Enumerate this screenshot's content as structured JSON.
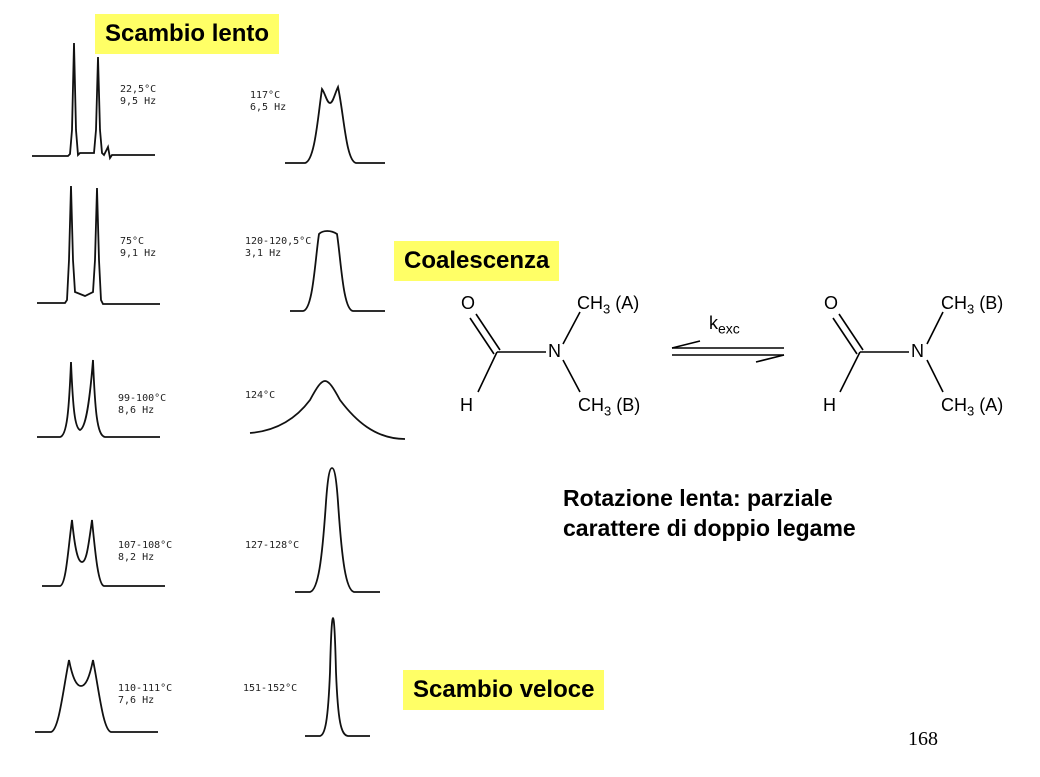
{
  "labels": {
    "slow": "Scambio lento",
    "coalescence": "Coalescenza",
    "fast": "Scambio veloce"
  },
  "spectra": [
    {
      "temp": "22,5°C",
      "hz": "9,5 Hz"
    },
    {
      "temp": "75°C",
      "hz": "9,1 Hz"
    },
    {
      "temp": "99-100°C",
      "hz": "8,6 Hz"
    },
    {
      "temp": "107-108°C",
      "hz": "8,2 Hz"
    },
    {
      "temp": "110-111°C",
      "hz": "7,6 Hz"
    },
    {
      "temp": "117°C",
      "hz": "6,5 Hz"
    },
    {
      "temp": "120-120,5°C",
      "hz": "3,1 Hz"
    },
    {
      "temp": "124°C",
      "hz": ""
    },
    {
      "temp": "127-128°C",
      "hz": ""
    },
    {
      "temp": "151-152°C",
      "hz": ""
    }
  ],
  "molecule": {
    "left": {
      "O": "O",
      "H": "H",
      "N": "N",
      "top_group": "CH3 (A)",
      "bottom_group": "CH3 (B)"
    },
    "right": {
      "O": "O",
      "H": "H",
      "N": "N",
      "top_group": "CH3 (B)",
      "bottom_group": "CH3 (A)"
    },
    "rate_constant": "kexc"
  },
  "caption": {
    "line1": "Rotazione lenta: parziale",
    "line2": "carattere di doppio legame"
  },
  "page_number": "168"
}
